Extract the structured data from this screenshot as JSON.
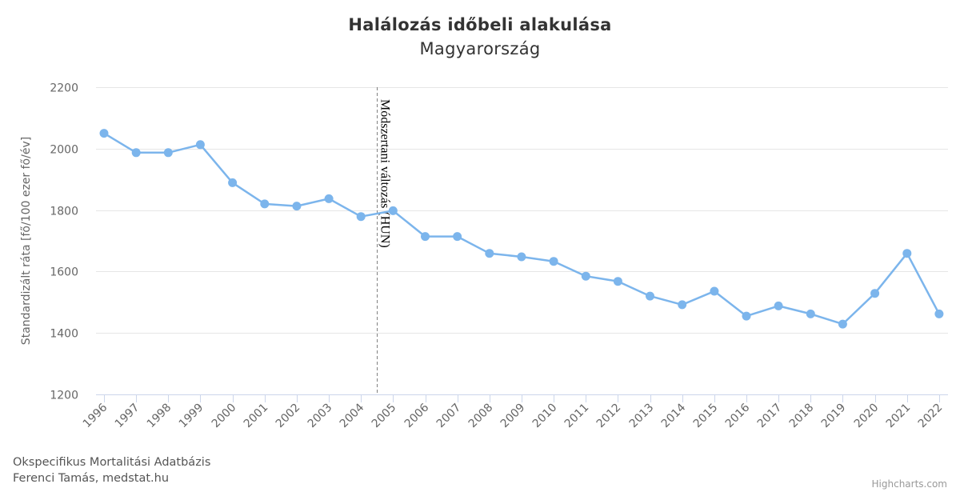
{
  "chart_data": {
    "type": "line",
    "title": "Halálozás időbeli alakulása",
    "subtitle": "Magyarország",
    "xlabel": "",
    "ylabel": "Standardizált ráta [fő/100 ezer fő/év]",
    "ylim": [
      1200,
      2200
    ],
    "yticks": [
      1200,
      1400,
      1600,
      1800,
      2000,
      2200
    ],
    "grid": true,
    "legend": null,
    "categories": [
      "1996",
      "1997",
      "1998",
      "1999",
      "2000",
      "2001",
      "2002",
      "2003",
      "2004",
      "2005",
      "2006",
      "2007",
      "2008",
      "2009",
      "2010",
      "2011",
      "2012",
      "2013",
      "2014",
      "2015",
      "2016",
      "2017",
      "2018",
      "2019",
      "2020",
      "2021",
      "2022"
    ],
    "series": [
      {
        "name": "Magyarország",
        "color": "#7cb5ec",
        "values": [
          2050,
          1987,
          1987,
          2013,
          1889,
          1820,
          1813,
          1837,
          1779,
          1798,
          1714,
          1714,
          1659,
          1648,
          1633,
          1585,
          1568,
          1520,
          1492,
          1536,
          1455,
          1488,
          1462,
          1429,
          1529,
          1659,
          1462
        ]
      }
    ],
    "annotations": [
      {
        "type": "vertical-dashed-line",
        "x_between": [
          "2004",
          "2005"
        ],
        "label": "Módszertani változás (HUN)"
      }
    ]
  },
  "credits": {
    "line1": "Okspecifikus Mortalitási Adatbázis",
    "line2": "Ferenci Tamás, medstat.hu",
    "highcharts": "Highcharts.com"
  },
  "colors": {
    "series": "#7cb5ec",
    "grid": "#e6e6e6",
    "axis": "#ccd6eb",
    "plotline": "#808080"
  }
}
